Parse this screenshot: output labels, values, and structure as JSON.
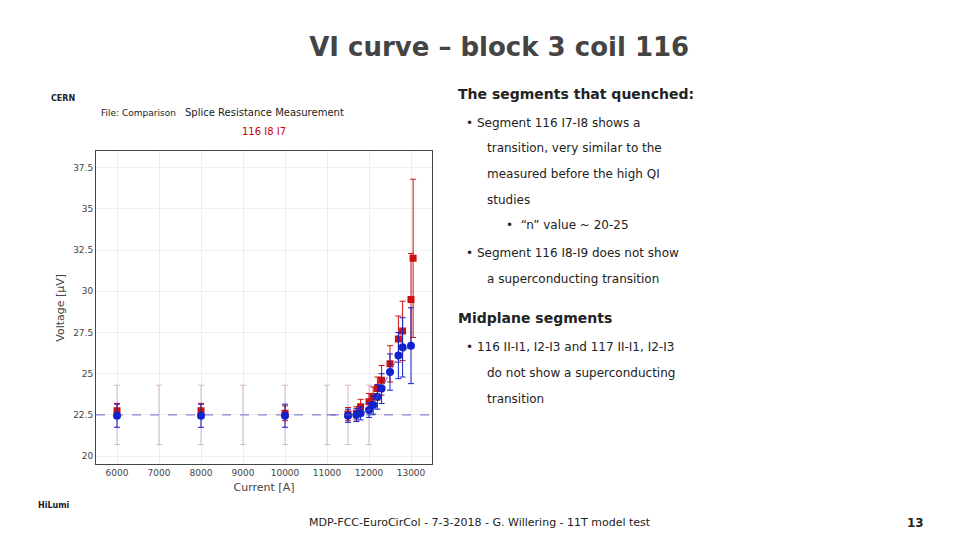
{
  "chart_data": {
    "type": "scatter",
    "title": "VI curve – block 3 coil 116",
    "xlabel": "Current [A]",
    "ylabel": "Voltage [µV]",
    "xlim": [
      5500,
      13500
    ],
    "ylim": [
      19.5,
      38.5
    ],
    "xticks": [
      6000,
      7000,
      8000,
      9000,
      10000,
      11000,
      12000,
      13000
    ],
    "yticks": [
      20,
      22.5,
      25,
      27.5,
      30,
      32.5,
      35,
      37.5
    ],
    "grid": true,
    "series": [
      {
        "type": "line",
        "line_style": "dashed",
        "color": "#5555BB",
        "x": [
          5500,
          13500
        ],
        "values": [
          22.5,
          22.5
        ]
      },
      {
        "type": "scatter",
        "marker": "none",
        "color": "#BB88BB",
        "x": [
          6000,
          7000,
          8000,
          9000,
          10000,
          11000,
          11500,
          12000
        ],
        "values": [
          22.5,
          22.5,
          22.5,
          22.5,
          22.5,
          22.5,
          22.5,
          22.5
        ],
        "yerr": [
          1.8,
          1.8,
          1.8,
          1.8,
          1.8,
          1.8,
          1.8,
          1.8
        ]
      },
      {
        "type": "scatter",
        "marker": "square",
        "color": "#CC1111",
        "x": [
          6000,
          8000,
          10000,
          11500,
          11700,
          11800,
          12000,
          12100,
          12200,
          12300,
          12500,
          12700,
          12800,
          13000,
          13050
        ],
        "values": [
          22.75,
          22.75,
          22.6,
          22.55,
          22.6,
          23.0,
          23.3,
          23.6,
          24.1,
          24.6,
          25.6,
          27.1,
          27.6,
          29.5,
          32.0
        ],
        "yerr": [
          0.45,
          0.45,
          0.45,
          0.4,
          0.4,
          0.45,
          0.5,
          0.6,
          0.7,
          0.9,
          1.1,
          1.4,
          1.8,
          2.8,
          4.8
        ]
      },
      {
        "type": "scatter",
        "marker": "circle",
        "color": "#1122CC",
        "x": [
          6000,
          8000,
          10000,
          11500,
          11700,
          11800,
          12000,
          12100,
          12200,
          12300,
          12500,
          12700,
          12800,
          13000
        ],
        "values": [
          22.45,
          22.45,
          22.45,
          22.45,
          22.5,
          22.6,
          22.8,
          23.1,
          23.6,
          24.1,
          25.1,
          26.1,
          26.6,
          26.7
        ],
        "yerr": [
          0.7,
          0.7,
          0.7,
          0.4,
          0.4,
          0.4,
          0.45,
          0.55,
          0.75,
          0.9,
          1.1,
          1.4,
          1.8,
          2.3
        ]
      },
      {
        "type": "line",
        "line_style": "dashed",
        "color": "#5555BB",
        "x": [
          11000,
          11500,
          11700,
          12000,
          12200,
          12500,
          12700,
          13000
        ],
        "values": [
          22.5,
          22.5,
          22.5,
          22.8,
          23.6,
          25.1,
          26.1,
          26.7
        ]
      }
    ],
    "annotations": [
      {
        "text": "Splice Resistance Measurement"
      },
      {
        "text": "116 I8 I7",
        "color": "#CC0000"
      },
      {
        "text": "File: Comparison"
      },
      {
        "text": "The segments that quenched:"
      },
      {
        "text": "• Segment 116 I7-I8 shows a"
      },
      {
        "text": "transition, very similar to the"
      },
      {
        "text": "measured before the high QI"
      },
      {
        "text": "studies"
      },
      {
        "text": "•  “n” value ~ 20-25"
      },
      {
        "text": "• Segment 116 I8-I9 does not show"
      },
      {
        "text": "a superconducting transition"
      },
      {
        "text": "Midplane segments"
      },
      {
        "text": "• 116 II-I1, I2-I3 and 117 II-I1, I2-I3"
      },
      {
        "text": "do not show a superconducting"
      },
      {
        "text": "transition"
      },
      {
        "text": "MDP-FCC-EuroCirCol - 7-3-2018 - G. Willering - 11T model test"
      },
      {
        "text": "13"
      },
      {
        "text": "CERN"
      },
      {
        "text": "HiLumi"
      }
    ]
  }
}
